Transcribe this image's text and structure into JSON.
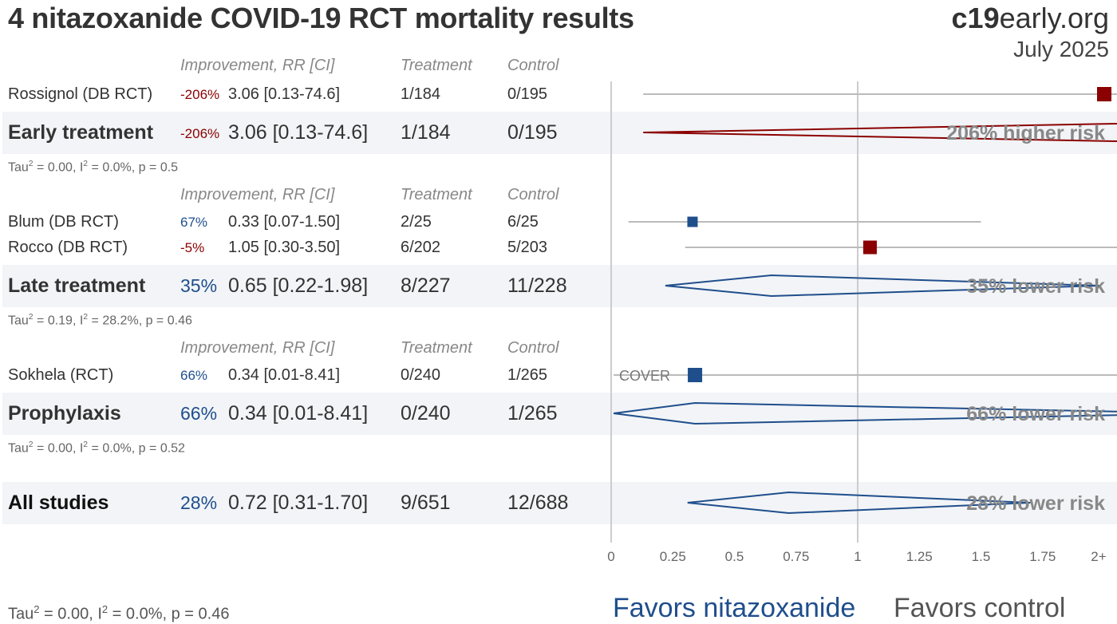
{
  "header": {
    "title": "4 nitazoxanide COVID-19 RCT mortality results",
    "brand_bold": "c19",
    "brand_rest": "early.org",
    "date": "July 2025"
  },
  "columns": {
    "improvement": "Improvement, RR [CI]",
    "treatment": "Treatment",
    "control": "Control"
  },
  "groups": [
    {
      "studies": [
        {
          "name": "Rossignol (DB RCT)",
          "pct": "-206%",
          "rr": "3.06 [0.13-74.6]",
          "treatment": "1/184",
          "control": "0/195"
        }
      ],
      "summary": {
        "name": "Early treatment",
        "pct": "-206%",
        "rr": "3.06 [0.13-74.6]",
        "treatment": "1/184",
        "control": "0/195",
        "risk": "206% higher risk"
      },
      "stats": {
        "tau2": "0.00",
        "i2": "0.0%",
        "p": "0.5"
      }
    },
    {
      "studies": [
        {
          "name": "Blum (DB RCT)",
          "pct": "67%",
          "rr": "0.33 [0.07-1.50]",
          "treatment": "2/25",
          "control": "6/25"
        },
        {
          "name": "Rocco (DB RCT)",
          "pct": "-5%",
          "rr": "1.05 [0.30-3.50]",
          "treatment": "6/202",
          "control": "5/203"
        }
      ],
      "summary": {
        "name": "Late treatment",
        "pct": "35%",
        "rr": "0.65 [0.22-1.98]",
        "treatment": "8/227",
        "control": "11/228",
        "risk": "35% lower risk"
      },
      "stats": {
        "tau2": "0.19",
        "i2": "28.2%",
        "p": "0.46"
      }
    },
    {
      "studies": [
        {
          "name": "Sokhela (RCT)",
          "pct": "66%",
          "rr": "0.34 [0.01-8.41]",
          "treatment": "0/240",
          "control": "1/265",
          "note": "COVER"
        }
      ],
      "summary": {
        "name": "Prophylaxis",
        "pct": "66%",
        "rr": "0.34 [0.01-8.41]",
        "treatment": "0/240",
        "control": "1/265",
        "risk": "66% lower risk"
      },
      "stats": {
        "tau2": "0.00",
        "i2": "0.0%",
        "p": "0.52"
      }
    }
  ],
  "overall": {
    "name": "All studies",
    "pct": "28%",
    "rr": "0.72 [0.31-1.70]",
    "treatment": "9/651",
    "control": "12/688",
    "risk": "28% lower risk"
  },
  "overall_stats": {
    "tau2": "0.00",
    "i2": "0.0%",
    "p": "0.46"
  },
  "favors": {
    "left": "Favors nitazoxanide",
    "right": "Favors control"
  },
  "colors": {
    "harm": "#8b0000",
    "benefit": "#1f4e8c",
    "axis": "#cccccc"
  },
  "chart_data": {
    "type": "forest",
    "axis_ticks": [
      "0",
      "0.25",
      "0.5",
      "0.75",
      "1",
      "1.25",
      "1.5",
      "1.75",
      "2+"
    ],
    "xlim": [
      0,
      2
    ],
    "rows": [
      {
        "label": "Rossignol (DB RCT)",
        "kind": "study",
        "rr": 3.06,
        "lo": 0.13,
        "hi": 74.6
      },
      {
        "label": "Early treatment",
        "kind": "summary",
        "rr": 3.06,
        "lo": 0.13,
        "hi": 74.6
      },
      {
        "label": "Blum (DB RCT)",
        "kind": "study",
        "rr": 0.33,
        "lo": 0.07,
        "hi": 1.5
      },
      {
        "label": "Rocco (DB RCT)",
        "kind": "study",
        "rr": 1.05,
        "lo": 0.3,
        "hi": 3.5
      },
      {
        "label": "Late treatment",
        "kind": "summary",
        "rr": 0.65,
        "lo": 0.22,
        "hi": 1.98
      },
      {
        "label": "Sokhela (RCT)",
        "kind": "study",
        "rr": 0.34,
        "lo": 0.01,
        "hi": 8.41
      },
      {
        "label": "Prophylaxis",
        "kind": "summary",
        "rr": 0.34,
        "lo": 0.01,
        "hi": 8.41
      },
      {
        "label": "All studies",
        "kind": "summary",
        "rr": 0.72,
        "lo": 0.31,
        "hi": 1.7
      }
    ]
  }
}
